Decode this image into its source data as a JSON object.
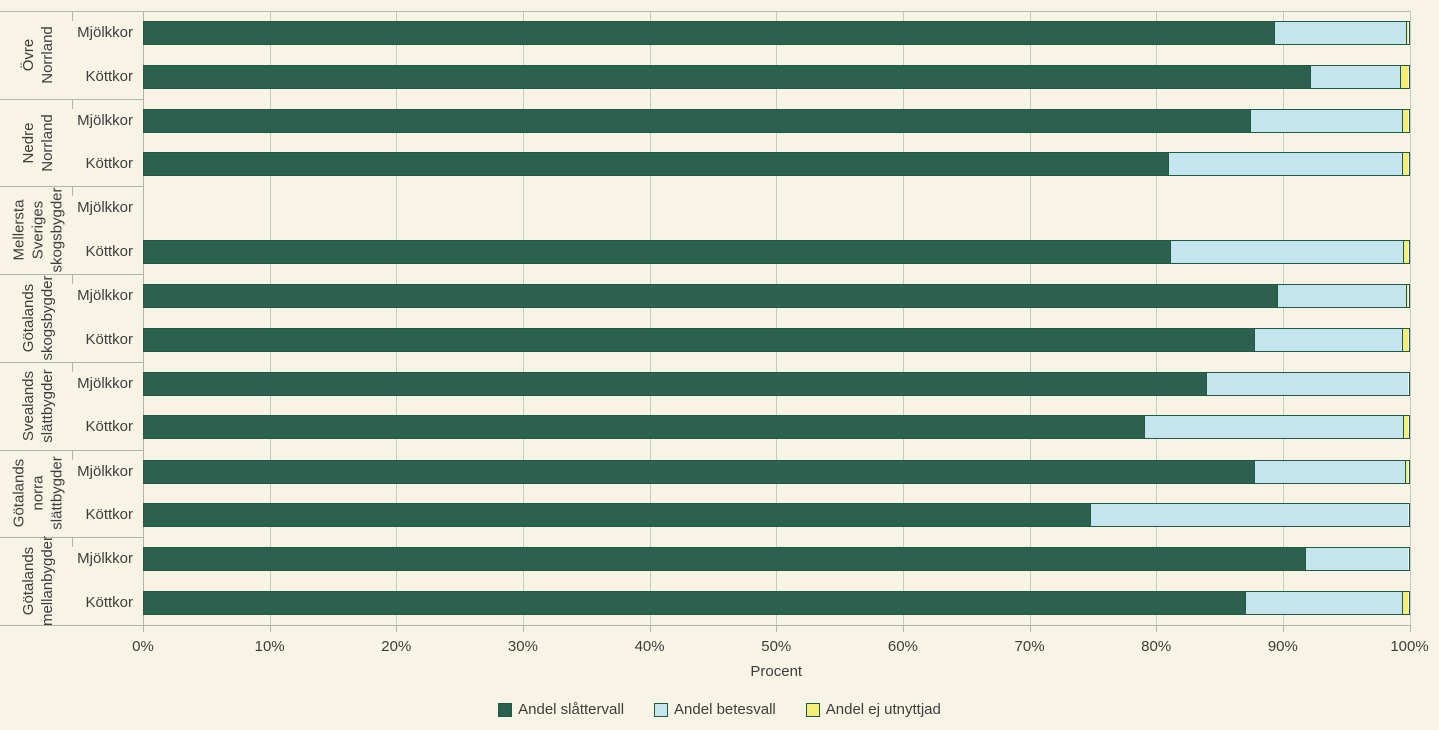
{
  "colors": {
    "background": "#f7f4e6",
    "bar_green": "#2c6150",
    "bar_blue": "#c5e5ee",
    "bar_yellow": "#f7ef75",
    "bar_border": "#1f5a46",
    "gridline": "#c9c8c0",
    "axis_line": "#b5b4ac",
    "text": "#3d3d3d"
  },
  "chart_data": {
    "type": "bar",
    "orientation": "horizontal",
    "stacked": true,
    "xlabel": "Procent",
    "xlim": [
      0,
      100
    ],
    "x_ticks": [
      "0%",
      "10%",
      "20%",
      "30%",
      "40%",
      "50%",
      "60%",
      "70%",
      "80%",
      "90%",
      "100%"
    ],
    "grid": true,
    "legend_position": "bottom",
    "series": [
      {
        "name": "Andel slåttervall",
        "color": "#2c6150"
      },
      {
        "name": "Andel betesvall",
        "color": "#c5e5ee"
      },
      {
        "name": "Andel ej utnyttjad",
        "color": "#f7ef75"
      }
    ],
    "groups": [
      {
        "region": "Övre Norrland",
        "region_lines": [
          "Övre",
          "Norrland"
        ],
        "rows": [
          {
            "label": "Mjölkkor",
            "values": [
              89.4,
              10.4,
              0.2
            ]
          },
          {
            "label": "Köttkor",
            "values": [
              92.2,
              7.1,
              0.7
            ]
          }
        ]
      },
      {
        "region": "Nedre Norrland",
        "region_lines": [
          "Nedre",
          "Norrland"
        ],
        "rows": [
          {
            "label": "Mjölkkor",
            "values": [
              87.5,
              12.0,
              0.5
            ]
          },
          {
            "label": "Köttkor",
            "values": [
              81.0,
              18.5,
              0.5
            ]
          }
        ]
      },
      {
        "region": "Mellersta Sveriges skogsbygder",
        "region_lines": [
          "Mellersta",
          "Sveriges",
          "skogsbygder"
        ],
        "rows": [
          {
            "label": "Mjölkkor",
            "values": null
          },
          {
            "label": "Köttkor",
            "values": [
              81.1,
              18.5,
              0.4
            ]
          }
        ]
      },
      {
        "region": "Götalands skogsbygder",
        "region_lines": [
          "Götalands",
          "skogsbygder"
        ],
        "rows": [
          {
            "label": "Mjölkkor",
            "values": [
              89.6,
              10.2,
              0.2
            ]
          },
          {
            "label": "Köttkor",
            "values": [
              87.8,
              11.7,
              0.5
            ]
          }
        ]
      },
      {
        "region": "Svealands slättbygder",
        "region_lines": [
          "Svealands",
          "slättbygder"
        ],
        "rows": [
          {
            "label": "Mjölkkor",
            "values": [
              84.0,
              16.0,
              0.0
            ]
          },
          {
            "label": "Köttkor",
            "values": [
              79.1,
              20.5,
              0.4
            ]
          }
        ]
      },
      {
        "region": "Götalands norra slättbygder",
        "region_lines": [
          "Götalands",
          "norra",
          "slättbygder"
        ],
        "rows": [
          {
            "label": "Mjölkkor",
            "values": [
              87.8,
              11.9,
              0.3
            ]
          },
          {
            "label": "Köttkor",
            "values": [
              74.8,
              25.2,
              0.0
            ]
          }
        ]
      },
      {
        "region": "Götalands mellanbygder",
        "region_lines": [
          "Götalands",
          "mellanbygder"
        ],
        "rows": [
          {
            "label": "Mjölkkor",
            "values": [
              91.8,
              8.2,
              0.0
            ]
          },
          {
            "label": "Köttkor",
            "values": [
              87.1,
              12.4,
              0.5
            ]
          }
        ]
      }
    ]
  }
}
